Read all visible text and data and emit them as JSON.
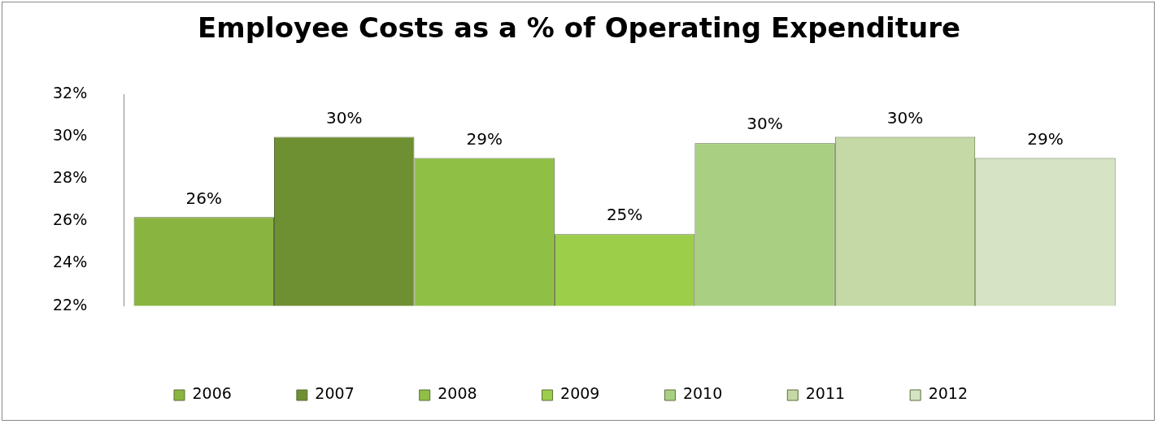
{
  "chart_data": {
    "type": "bar",
    "title": "Employee Costs as a % of Operating Expenditure",
    "categories": [
      null
    ],
    "series": [
      {
        "name": "2006",
        "color": "#8ab440",
        "values": [
          26.2
        ],
        "value_labels": [
          "26%"
        ]
      },
      {
        "name": "2007",
        "color": "#6e8f32",
        "values": [
          30.0
        ],
        "value_labels": [
          "30%"
        ]
      },
      {
        "name": "2008",
        "color": "#8fbf45",
        "values": [
          29.0
        ],
        "value_labels": [
          "29%"
        ]
      },
      {
        "name": "2009",
        "color": "#9cce4a",
        "values": [
          25.4
        ],
        "value_labels": [
          "25%"
        ]
      },
      {
        "name": "2010",
        "color": "#a9cf82",
        "values": [
          29.7
        ],
        "value_labels": [
          "30%"
        ]
      },
      {
        "name": "2011",
        "color": "#c4d9a6",
        "values": [
          30.0
        ],
        "value_labels": [
          "30%"
        ]
      },
      {
        "name": "2012",
        "color": "#d6e3c4",
        "values": [
          29.0
        ],
        "value_labels": [
          "29%"
        ]
      }
    ],
    "ylim": [
      22,
      32
    ],
    "yticks": [
      {
        "value": 22,
        "label": "22%"
      },
      {
        "value": 24,
        "label": "24%"
      },
      {
        "value": 26,
        "label": "26%"
      },
      {
        "value": 28,
        "label": "28%"
      },
      {
        "value": 30,
        "label": "30%"
      },
      {
        "value": 32,
        "label": "32%"
      }
    ],
    "grid": false,
    "legend": "bottom"
  }
}
